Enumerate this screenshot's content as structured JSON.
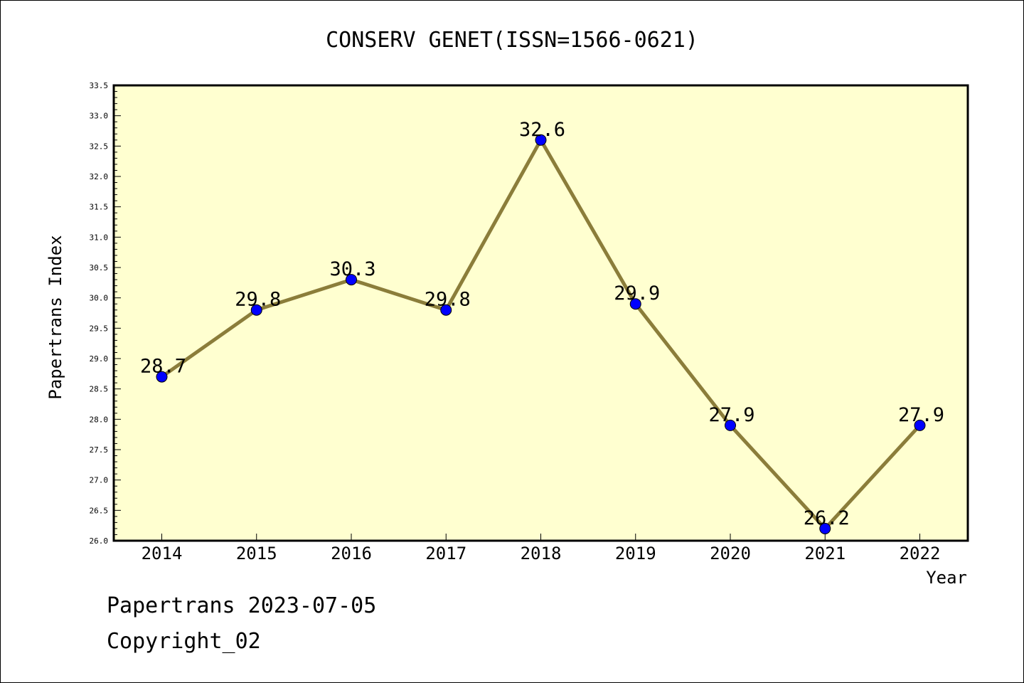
{
  "chart_data": {
    "type": "line",
    "title": "CONSERV GENET(ISSN=1566-0621)",
    "xlabel": "Year",
    "ylabel": "Papertrans Index",
    "categories": [
      "2014",
      "2015",
      "2016",
      "2017",
      "2018",
      "2019",
      "2020",
      "2021",
      "2022"
    ],
    "series": [
      {
        "values": [
          28.7,
          29.8,
          30.3,
          29.8,
          32.6,
          29.9,
          27.9,
          26.2,
          27.9
        ]
      }
    ],
    "data_labels": [
      "28.7",
      "29.8",
      "30.3",
      "29.8",
      "32.6",
      "29.9",
      "27.9",
      "26.2",
      "27.9"
    ],
    "ylim": [
      26.0,
      33.5
    ],
    "y_ticks": [
      "26.0",
      "26.5",
      "27.0",
      "27.5",
      "28.0",
      "28.5",
      "29.0",
      "29.5",
      "30.0",
      "30.5",
      "31.0",
      "31.5",
      "32.0",
      "32.5",
      "33.0",
      "33.5"
    ],
    "grid": false,
    "legend": "none",
    "colors": {
      "plot_background": "#ffffd0",
      "line": "#8b7d3a",
      "marker_fill": "#0000ff",
      "marker_edge": "#000000"
    }
  },
  "footer": {
    "date_text": "Papertrans 2023-07-05",
    "copyright_text": "Copyright_02"
  }
}
